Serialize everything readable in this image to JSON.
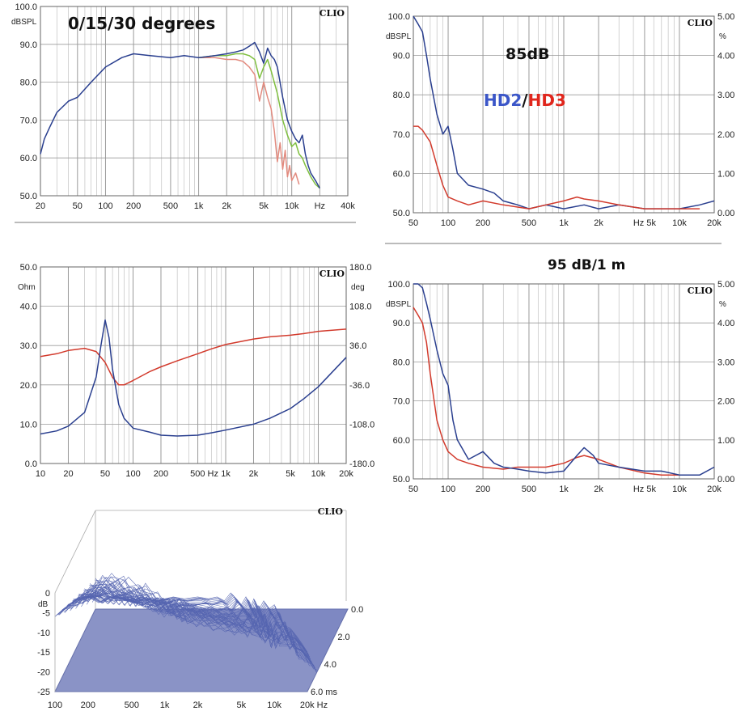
{
  "colors": {
    "blue": "#2a3f8f",
    "red": "#d23a2c",
    "salmon": "#e28a7e",
    "green": "#7fbf3f",
    "grid": "#b8b8b8",
    "axis": "#666666",
    "floor": "#8a93c6",
    "waterfall": "#5565b0"
  },
  "charts": {
    "freq": {
      "title": "0/15/30 degrees",
      "brand": "CLIO",
      "yunit": "dBSPL",
      "yticks": [
        "100.0",
        "90.0",
        "80.0",
        "70.0",
        "60.0",
        "50.0"
      ],
      "xticks": [
        "20",
        "50",
        "100",
        "200",
        "500",
        "1k",
        "2k",
        "5k",
        "10k",
        "Hz",
        "40k"
      ]
    },
    "hd85": {
      "title": "85dB",
      "legend_hd2": "HD2",
      "legend_sep": "/",
      "legend_hd3": "HD3",
      "brand": "CLIO",
      "yunit": "dBSPL",
      "yunit_right": "%",
      "yticks": [
        "100.0",
        "90.0",
        "80.0",
        "70.0",
        "60.0",
        "50.0"
      ],
      "yticks_right": [
        "5.00",
        "4.00",
        "3.00",
        "2.00",
        "1.00",
        "0.00"
      ],
      "xticks": [
        "50",
        "100",
        "200",
        "500",
        "1k",
        "2k",
        "Hz 5k",
        "10k",
        "20k"
      ]
    },
    "imp": {
      "brand": "CLIO",
      "yunit": "Ohm",
      "yunit_right": "deg",
      "yticks": [
        "50.0",
        "40.0",
        "30.0",
        "20.0",
        "10.0",
        "0.0"
      ],
      "yticks_right": [
        "180.0",
        "108.0",
        "36.0",
        "-36.0",
        "-108.0",
        "-180.0"
      ],
      "xticks": [
        "10",
        "20",
        "50",
        "100",
        "200",
        "500 Hz",
        "1k",
        "2k",
        "5k",
        "10k",
        "20k"
      ]
    },
    "hd95": {
      "title": "95 dB/1 m",
      "brand": "CLIO",
      "yunit": "dBSPL",
      "yunit_right": "%",
      "yticks": [
        "100.0",
        "90.0",
        "80.0",
        "70.0",
        "60.0",
        "50.0"
      ],
      "yticks_right": [
        "5.00",
        "4.00",
        "3.00",
        "2.00",
        "1.00",
        "0.00"
      ],
      "xticks": [
        "50",
        "100",
        "200",
        "500",
        "1k",
        "2k",
        "Hz 5k",
        "10k",
        "20k"
      ]
    },
    "csd": {
      "brand": "CLIO",
      "yunit": "dB",
      "yticks": [
        "0",
        "-5",
        "-10",
        "-15",
        "-20",
        "-25"
      ],
      "xticks": [
        "100",
        "200",
        "500",
        "1k",
        "2k",
        "5k",
        "10k",
        "20k Hz"
      ],
      "zticks": [
        "0.0",
        "2.0",
        "4.0",
        "6.0 ms"
      ]
    }
  },
  "chart_data": [
    {
      "type": "line",
      "title": "0/15/30 degrees",
      "xlabel": "Hz",
      "ylabel": "dBSPL",
      "xscale": "log",
      "xlim": [
        20,
        40000
      ],
      "ylim": [
        50,
        100
      ],
      "series": [
        {
          "color": "#2a3f8f",
          "x": [
            20,
            22,
            25,
            30,
            40,
            50,
            70,
            100,
            150,
            200,
            300,
            500,
            700,
            1000,
            1500,
            2000,
            2500,
            3000,
            3500,
            4000,
            4500,
            5000,
            5500,
            6000,
            6500,
            7000,
            8000,
            9000,
            10000,
            11000,
            12000,
            13000,
            14000,
            15000,
            16000,
            18000,
            20000
          ],
          "y": [
            61,
            65,
            68,
            72,
            75,
            76,
            80,
            84,
            86.5,
            87.5,
            87,
            86.5,
            87,
            86.5,
            87,
            87.5,
            88,
            88.5,
            89.5,
            90.5,
            88,
            85,
            89,
            87,
            86,
            84,
            76,
            70,
            67,
            65,
            64,
            66,
            61,
            58,
            56,
            54,
            52
          ]
        },
        {
          "color": "#7fbf3f",
          "x": [
            1000,
            1500,
            2000,
            2500,
            3000,
            3500,
            4000,
            4500,
            5000,
            5500,
            6000,
            7000,
            8000,
            9000,
            10000,
            11000,
            12000,
            13000,
            14000,
            16000,
            18000,
            20000
          ],
          "y": [
            86.5,
            87,
            87,
            87.5,
            87.5,
            87,
            86,
            81,
            84,
            86,
            83,
            77,
            70,
            66,
            63,
            64,
            61,
            60,
            58,
            55,
            53,
            52
          ]
        },
        {
          "color": "#e28a7e",
          "x": [
            1000,
            1500,
            2000,
            2500,
            3000,
            3500,
            4000,
            4500,
            5000,
            5500,
            6000,
            6500,
            7000,
            7500,
            8000,
            8500,
            9000,
            9500,
            10000,
            11000,
            12000
          ],
          "y": [
            86.5,
            86.5,
            86,
            86,
            85.5,
            84,
            82,
            75,
            80,
            76,
            73,
            67,
            59,
            64,
            57,
            62,
            55,
            58,
            54,
            56,
            53
          ]
        }
      ]
    },
    {
      "type": "line",
      "title": "85dB",
      "xlabel": "Hz",
      "ylabel": "dBSPL",
      "xscale": "log",
      "xlim": [
        50,
        20000
      ],
      "ylim": [
        50,
        100
      ],
      "series": [
        {
          "name": "HD2",
          "color": "#2a3f8f",
          "x": [
            50,
            55,
            60,
            65,
            70,
            80,
            90,
            100,
            110,
            120,
            150,
            200,
            250,
            300,
            400,
            500,
            700,
            1000,
            1500,
            2000,
            3000,
            5000,
            7000,
            10000,
            15000,
            20000
          ],
          "y": [
            100,
            98,
            96,
            90,
            84,
            75,
            70,
            72,
            66,
            60,
            57,
            56,
            55,
            53,
            52,
            51,
            52,
            51,
            52,
            51,
            52,
            51,
            51,
            51,
            52,
            53
          ]
        },
        {
          "name": "HD3",
          "color": "#d23a2c",
          "x": [
            50,
            55,
            60,
            70,
            80,
            90,
            100,
            120,
            150,
            200,
            300,
            500,
            700,
            1000,
            1300,
            1500,
            2000,
            3000,
            5000,
            7000,
            10000,
            15000
          ],
          "y": [
            72,
            72,
            71,
            68,
            62,
            57,
            54,
            53,
            52,
            53,
            52,
            51,
            52,
            53,
            54,
            53.5,
            53,
            52,
            51,
            51,
            51,
            51
          ]
        }
      ]
    },
    {
      "type": "line",
      "xlabel": "Hz",
      "ylabel": "Ohm",
      "xscale": "log",
      "xlim": [
        10,
        20000
      ],
      "ylim": [
        0,
        50
      ],
      "ylim_right": [
        -180,
        180
      ],
      "series": [
        {
          "unit": "Ohm",
          "color": "#2a3f8f",
          "x": [
            10,
            15,
            20,
            30,
            40,
            45,
            50,
            55,
            60,
            70,
            80,
            100,
            150,
            200,
            300,
            500,
            700,
            1000,
            2000,
            3000,
            5000,
            7000,
            10000,
            20000
          ],
          "y": [
            7.5,
            8.3,
            9.5,
            13,
            22,
            30,
            36.5,
            32,
            24,
            15,
            11.5,
            9,
            8,
            7.2,
            7,
            7.2,
            7.8,
            8.5,
            10,
            11.5,
            14,
            16.5,
            19.5,
            27
          ]
        },
        {
          "unit": "deg",
          "color": "#d23a2c",
          "x": [
            10,
            15,
            20,
            30,
            40,
            50,
            60,
            70,
            80,
            100,
            150,
            200,
            300,
            500,
            700,
            1000,
            2000,
            3000,
            5000,
            7000,
            10000,
            20000
          ],
          "y": [
            16,
            21,
            27,
            31,
            25,
            5,
            -22,
            -36,
            -36,
            -28,
            -12,
            -3,
            8,
            21,
            30,
            38,
            48,
            52,
            55,
            58,
            62,
            66
          ]
        }
      ]
    },
    {
      "type": "line",
      "title": "95 dB/1 m",
      "xlabel": "Hz",
      "ylabel": "dBSPL",
      "xscale": "log",
      "xlim": [
        50,
        20000
      ],
      "ylim": [
        50,
        100
      ],
      "series": [
        {
          "color": "#2a3f8f",
          "x": [
            50,
            55,
            60,
            65,
            70,
            80,
            90,
            100,
            110,
            120,
            150,
            200,
            250,
            300,
            400,
            500,
            700,
            1000,
            1300,
            1500,
            1800,
            2000,
            3000,
            5000,
            7000,
            10000,
            15000,
            20000
          ],
          "y": [
            100,
            100,
            99,
            95,
            91,
            83,
            77,
            74,
            65,
            60,
            55,
            57,
            54,
            53,
            52.5,
            52,
            51.5,
            52,
            56,
            58,
            56,
            54,
            53,
            52,
            52,
            51,
            51,
            53
          ]
        },
        {
          "color": "#d23a2c",
          "x": [
            50,
            55,
            60,
            65,
            70,
            80,
            90,
            100,
            120,
            150,
            200,
            300,
            400,
            500,
            700,
            1000,
            1300,
            1500,
            2000,
            3000,
            5000,
            7000,
            10000,
            15000
          ],
          "y": [
            94,
            92,
            90,
            85,
            77,
            65,
            60,
            57,
            55,
            54,
            53,
            52.5,
            53,
            53,
            53,
            54,
            55.5,
            56,
            55,
            53,
            51.5,
            51,
            51,
            51
          ]
        }
      ]
    },
    {
      "type": "area",
      "xlabel": "Hz",
      "ylabel": "dB",
      "zlabel": "ms",
      "xscale": "log",
      "xlim": [
        100,
        20000
      ],
      "ylim": [
        -25,
        0
      ],
      "zlim": [
        0,
        6
      ],
      "slices": 52,
      "profile": {
        "x": [
          100,
          120,
          150,
          200,
          250,
          300,
          400,
          500,
          600,
          700,
          800,
          1000,
          1200,
          1500,
          2000,
          2500,
          3000,
          3500,
          4000,
          4500,
          5000,
          5500,
          6000,
          6500,
          7000,
          8000,
          9000,
          10000,
          11000,
          12000,
          14000,
          16000,
          18000,
          20000
        ],
        "y": [
          -6,
          -4,
          -2,
          -1,
          -2.5,
          -1,
          -1.5,
          -2,
          -1,
          -1.5,
          -2,
          -1.5,
          -1,
          -1.5,
          -1,
          -1.5,
          -1,
          -2,
          0,
          -1.5,
          -3,
          -1,
          -4,
          -1.5,
          -5,
          -2,
          -4,
          -3,
          -6,
          -8,
          -9,
          -11,
          -13,
          -15
        ]
      }
    }
  ]
}
